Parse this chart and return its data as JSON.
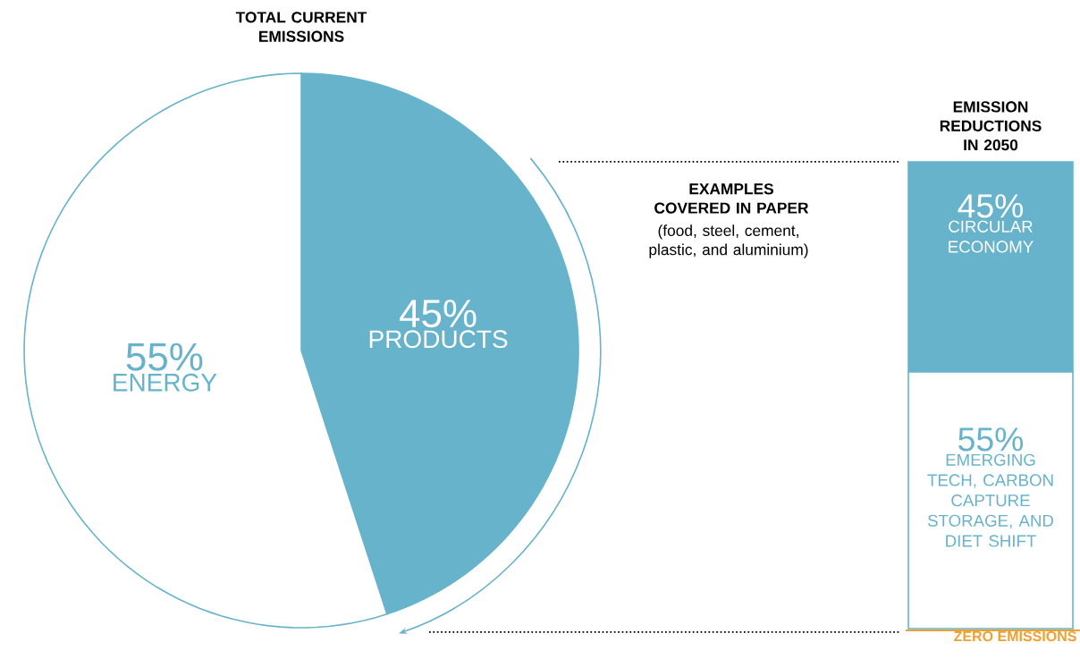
{
  "chart_data": [
    {
      "type": "pie",
      "title": "TOTAL CURRENT EMISSIONS",
      "categories": [
        "PRODUCTS",
        "ENERGY"
      ],
      "values": [
        45,
        55
      ],
      "colors": [
        "#67b3cc",
        "#ffffff"
      ],
      "value_labels": [
        "45%",
        "55%"
      ],
      "annotations": [
        "EXAMPLES COVERED IN PAPER",
        "(food, steel, cement, plastic, and aluminium)"
      ]
    },
    {
      "type": "bar",
      "title": "EMISSION REDUCTIONS IN 2050",
      "categories": [
        null
      ],
      "stacked": true,
      "annotations": [
        "ZERO EMISSIONS"
      ],
      "series": [
        {
          "name": "EMERGING TECH, CARBON CAPTURE STORAGE, AND DIET SHIFT",
          "color": "#ffffff",
          "values": [
            55
          ],
          "value_labels": [
            "55%"
          ]
        },
        {
          "name": "CIRCULAR ECONOMY",
          "color": "#67b3cc",
          "values": [
            45
          ],
          "value_labels": [
            "45%"
          ]
        }
      ]
    }
  ]
}
